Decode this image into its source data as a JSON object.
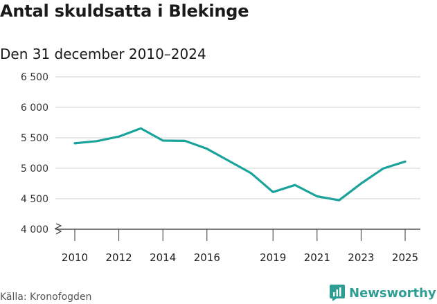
{
  "header": {
    "title": "Antal skuldsatta i Blekinge",
    "subtitle": "Den 31 december 2010–2024"
  },
  "footer": {
    "source": "Källa: Kronofogden",
    "brand": "Newsworthy"
  },
  "colors": {
    "line": "#1aa39b",
    "grid": "#d0d0d0",
    "axis": "#333333",
    "brand": "#2e9e95"
  },
  "icons": {
    "brand_logo": "newsworthy-logo-icon",
    "axis_break": "axis-break-icon"
  },
  "chart_data": {
    "type": "line",
    "title": "Antal skuldsatta i Blekinge",
    "subtitle": "Den 31 december 2010–2024",
    "xlabel": "",
    "ylabel": "",
    "x": [
      2010,
      2011,
      2012,
      2013,
      2014,
      2015,
      2016,
      2017,
      2018,
      2019,
      2020,
      2021,
      2022,
      2023,
      2024,
      2025
    ],
    "series": [
      {
        "values": [
          5410,
          5445,
          5520,
          5655,
          5455,
          5450,
          5320,
          5120,
          4920,
          4610,
          4725,
          4540,
          4475,
          4750,
          4995,
          5110
        ]
      }
    ],
    "x_ticks": [
      2010,
      2012,
      2014,
      2016,
      2019,
      2021,
      2023,
      2025
    ],
    "x_tick_labels": [
      "2010",
      "2012",
      "2014",
      "2016",
      "2019",
      "2021",
      "2023",
      "2025"
    ],
    "xlim": [
      2010,
      2025
    ],
    "y_ticks": [
      4000,
      4500,
      5000,
      5500,
      6000,
      6500
    ],
    "y_tick_labels": [
      "4 000",
      "4 500",
      "5 000",
      "5 500",
      "6 000",
      "6 500"
    ],
    "ylim": [
      4000,
      6500
    ],
    "grid": true,
    "y_axis_break": true,
    "legend": false
  }
}
